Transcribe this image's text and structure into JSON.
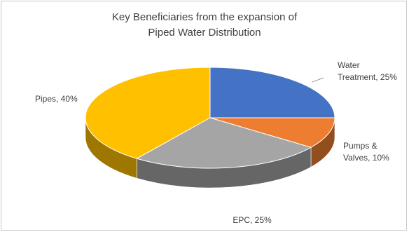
{
  "chart_data": {
    "type": "pie",
    "title_lines": [
      "Key Beneficiaries from the expansion of",
      "Piped Water Distribution"
    ],
    "slices": [
      {
        "label": "Water Treatment",
        "value": 25,
        "color": "#4472C4",
        "label_lines": [
          "Water",
          "Treatment, 25%"
        ]
      },
      {
        "label": "Pumps & Valves",
        "value": 10,
        "color": "#ED7D31",
        "label_lines": [
          "Pumps &",
          "Valves, 10%"
        ]
      },
      {
        "label": "EPC",
        "value": 25,
        "color": "#A5A5A5",
        "label_lines": [
          "EPC, 25%"
        ]
      },
      {
        "label": "Pipes",
        "value": 40,
        "color": "#FFC000",
        "label_lines": [
          "Pipes, 40%"
        ]
      }
    ],
    "three_d": true,
    "legend": "none"
  }
}
